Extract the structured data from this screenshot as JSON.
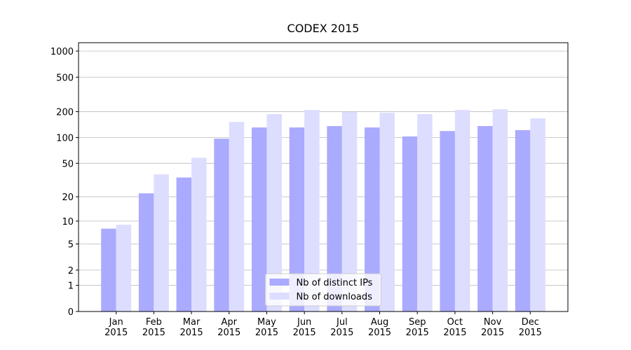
{
  "chart_data": {
    "type": "bar",
    "title": "CODEX 2015",
    "categories": [
      "Jan\n2015",
      "Feb\n2015",
      "Mar\n2015",
      "Apr\n2015",
      "May\n2015",
      "Jun\n2015",
      "Jul\n2015",
      "Aug\n2015",
      "Sep\n2015",
      "Oct\n2015",
      "Nov\n2015",
      "Dec\n2015"
    ],
    "series": [
      {
        "name": "Nb of distinct IPs",
        "color": "#aaaaff",
        "values": [
          8,
          22,
          34,
          97,
          131,
          131,
          136,
          131,
          103,
          119,
          136,
          122
        ]
      },
      {
        "name": "Nb of downloads",
        "color": "#ddddff",
        "values": [
          9,
          37,
          58,
          152,
          187,
          209,
          198,
          194,
          187,
          209,
          213,
          167
        ]
      }
    ],
    "yscale": "log1p",
    "ylim": [
      0,
      1250
    ],
    "yticks": [
      0,
      1,
      2,
      5,
      10,
      20,
      50,
      100,
      200,
      500,
      1000
    ],
    "grid": true,
    "legend": "lower center"
  }
}
